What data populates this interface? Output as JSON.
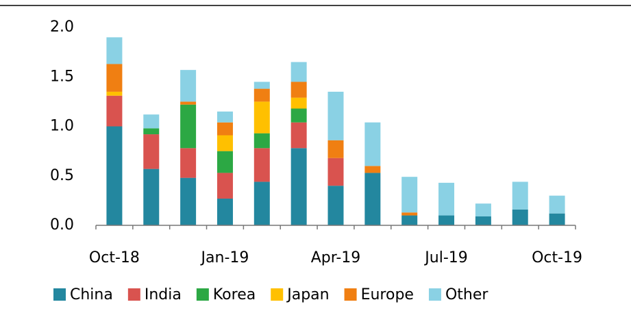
{
  "chart_data": {
    "type": "stacked_bar",
    "categories": [
      "Oct-18",
      null,
      null,
      "Jan-19",
      null,
      null,
      "Apr-19",
      null,
      null,
      "Jul-19",
      null,
      null,
      "Oct-19"
    ],
    "series": [
      {
        "name": "China",
        "color": "#23879f",
        "values": [
          1.0,
          0.57,
          0.48,
          0.27,
          0.44,
          0.78,
          0.4,
          0.53,
          0.1,
          0.1,
          0.09,
          0.16,
          0.12
        ]
      },
      {
        "name": "India",
        "color": "#d9534f",
        "values": [
          0.31,
          0.35,
          0.3,
          0.26,
          0.34,
          0.26,
          0.28,
          0,
          0,
          0,
          0,
          0,
          0
        ]
      },
      {
        "name": "Korea",
        "color": "#2ca844",
        "values": [
          0,
          0.06,
          0.44,
          0.22,
          0.15,
          0.14,
          0,
          0,
          0,
          0,
          0,
          0,
          0
        ]
      },
      {
        "name": "Japan",
        "color": "#ffc000",
        "values": [
          0.04,
          0,
          0,
          0.16,
          0.32,
          0.11,
          0,
          0,
          0,
          0,
          0,
          0,
          0
        ]
      },
      {
        "name": "Europe",
        "color": "#f07f12",
        "values": [
          0.28,
          0,
          0.03,
          0.13,
          0.13,
          0.16,
          0.18,
          0.07,
          0.03,
          0,
          0,
          0,
          0
        ]
      },
      {
        "name": "Other",
        "color": "#8ad1e4",
        "values": [
          0.27,
          0.14,
          0.32,
          0.11,
          0.07,
          0.2,
          0.49,
          0.44,
          0.36,
          0.33,
          0.13,
          0.28,
          0.18
        ]
      }
    ],
    "ylim": [
      0,
      2.0
    ],
    "yticks": [
      {
        "value": 0,
        "label": "0.0"
      },
      {
        "value": 0.5,
        "label": "0.5"
      },
      {
        "value": 1.0,
        "label": "1.0"
      },
      {
        "value": 1.5,
        "label": "1.5"
      },
      {
        "value": 2.0,
        "label": "2.0"
      }
    ],
    "legend": "bottom"
  }
}
